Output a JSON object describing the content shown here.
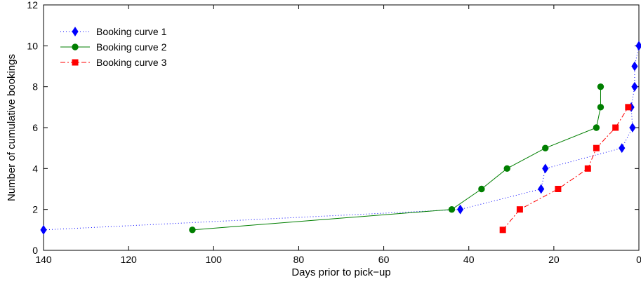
{
  "chart_data": {
    "type": "line",
    "title": "",
    "xlabel": "Days prior to pick−up",
    "ylabel": "Number of cumulative bookings",
    "xlim": [
      140,
      0
    ],
    "ylim": [
      0,
      12
    ],
    "x_reversed": true,
    "xticks": [
      140,
      120,
      100,
      80,
      60,
      40,
      20,
      0
    ],
    "yticks": [
      0,
      2,
      4,
      6,
      8,
      10,
      12
    ],
    "grid": false,
    "legend_position": "top-left",
    "series": [
      {
        "name": "Booking curve 1",
        "color": "#0000ff",
        "line_style": "dotted",
        "marker": "diamond",
        "points": [
          [
            140,
            1
          ],
          [
            42,
            2
          ],
          [
            23,
            3
          ],
          [
            22,
            4
          ],
          [
            4,
            5
          ],
          [
            1.5,
            6
          ],
          [
            1.8,
            7
          ],
          [
            1,
            8
          ],
          [
            1,
            9
          ],
          [
            0,
            10
          ]
        ]
      },
      {
        "name": "Booking curve 2",
        "color": "#007f00",
        "line_style": "solid",
        "marker": "circle",
        "points": [
          [
            105,
            1
          ],
          [
            44,
            2
          ],
          [
            37,
            3
          ],
          [
            31,
            4
          ],
          [
            22,
            5
          ],
          [
            10,
            6
          ],
          [
            9,
            7
          ],
          [
            9,
            8
          ]
        ]
      },
      {
        "name": "Booking curve 3",
        "color": "#ff0000",
        "line_style": "dashdot",
        "marker": "square",
        "points": [
          [
            32,
            1
          ],
          [
            28,
            2
          ],
          [
            19,
            3
          ],
          [
            12,
            4
          ],
          [
            10,
            5
          ],
          [
            5.5,
            6
          ],
          [
            2.5,
            7
          ]
        ]
      }
    ]
  }
}
